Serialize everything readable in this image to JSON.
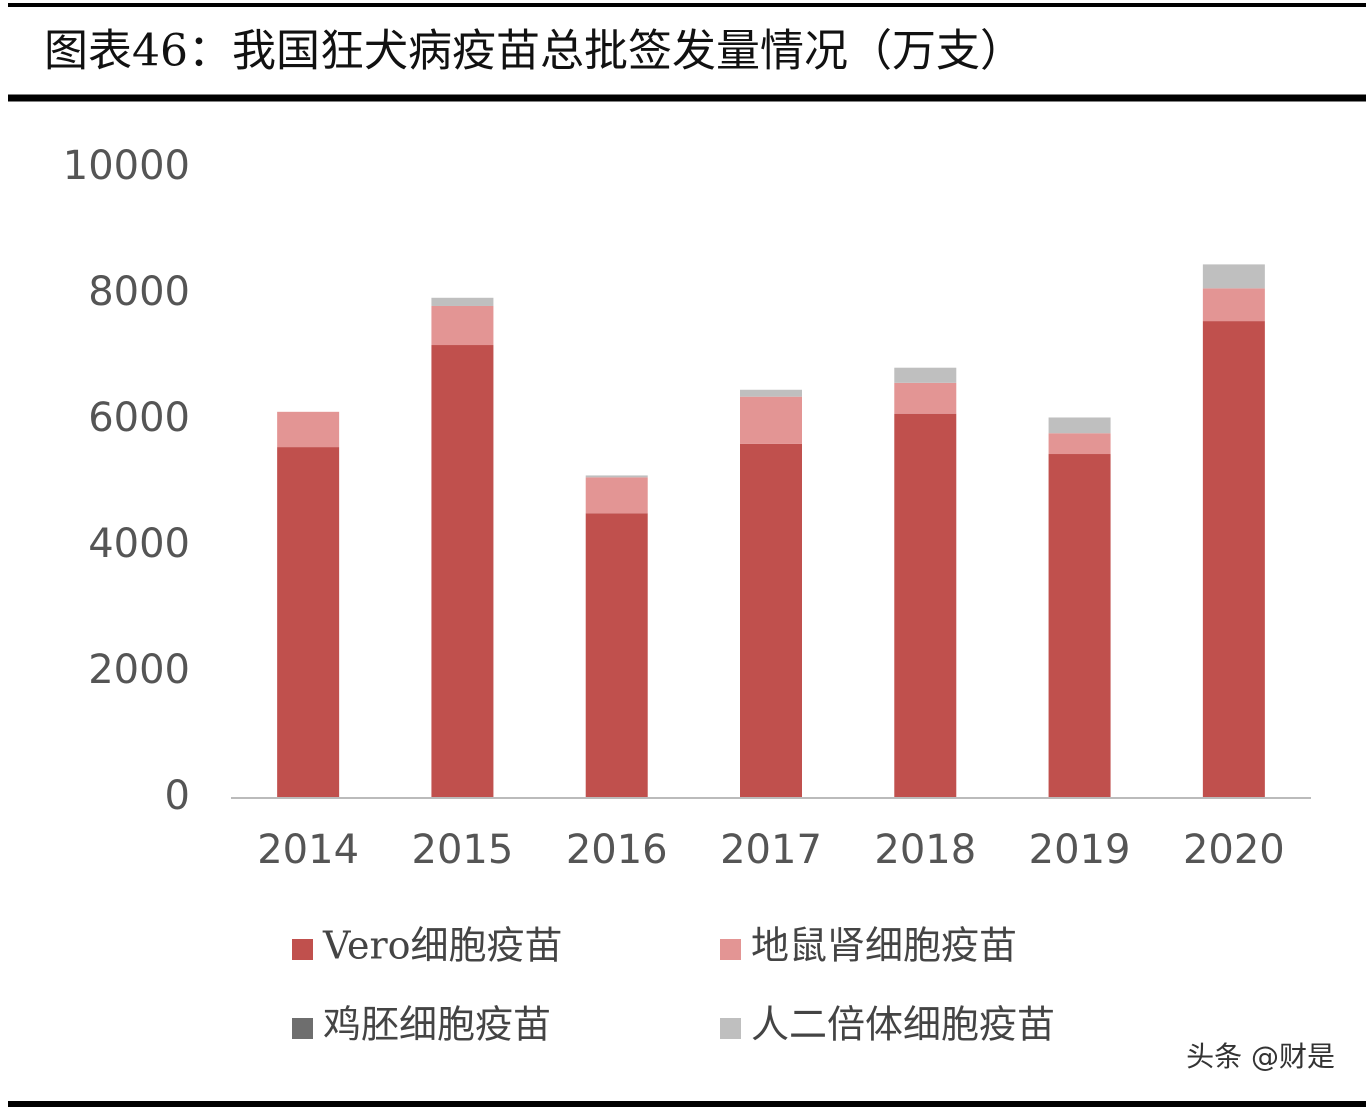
{
  "title": "图表46：我国狂犬病疫苗总批签发量情况（万支）",
  "watermark": "头条 @财是",
  "chart_data": {
    "type": "stacked-bar",
    "categories": [
      "2014",
      "2015",
      "2016",
      "2017",
      "2018",
      "2019",
      "2020"
    ],
    "series": [
      {
        "name": "Vero细胞疫苗",
        "color": "#c0504d",
        "values": [
          5570,
          7190,
          4520,
          5620,
          6100,
          5460,
          7570
        ]
      },
      {
        "name": "地鼠肾细胞疫苗",
        "color": "#e39594",
        "values": [
          560,
          620,
          570,
          750,
          490,
          330,
          520
        ]
      },
      {
        "name": "鸡胚细胞疫苗",
        "color": "#6e6e6e",
        "values": [
          0,
          0,
          0,
          0,
          0,
          0,
          0
        ]
      },
      {
        "name": "人二倍体细胞疫苗",
        "color": "#bfbfbf",
        "values": [
          0,
          130,
          30,
          110,
          240,
          250,
          380
        ]
      }
    ],
    "ylim": [
      0,
      10000
    ],
    "yticks": [
      0,
      2000,
      4000,
      6000,
      8000,
      10000
    ],
    "grid": false
  }
}
